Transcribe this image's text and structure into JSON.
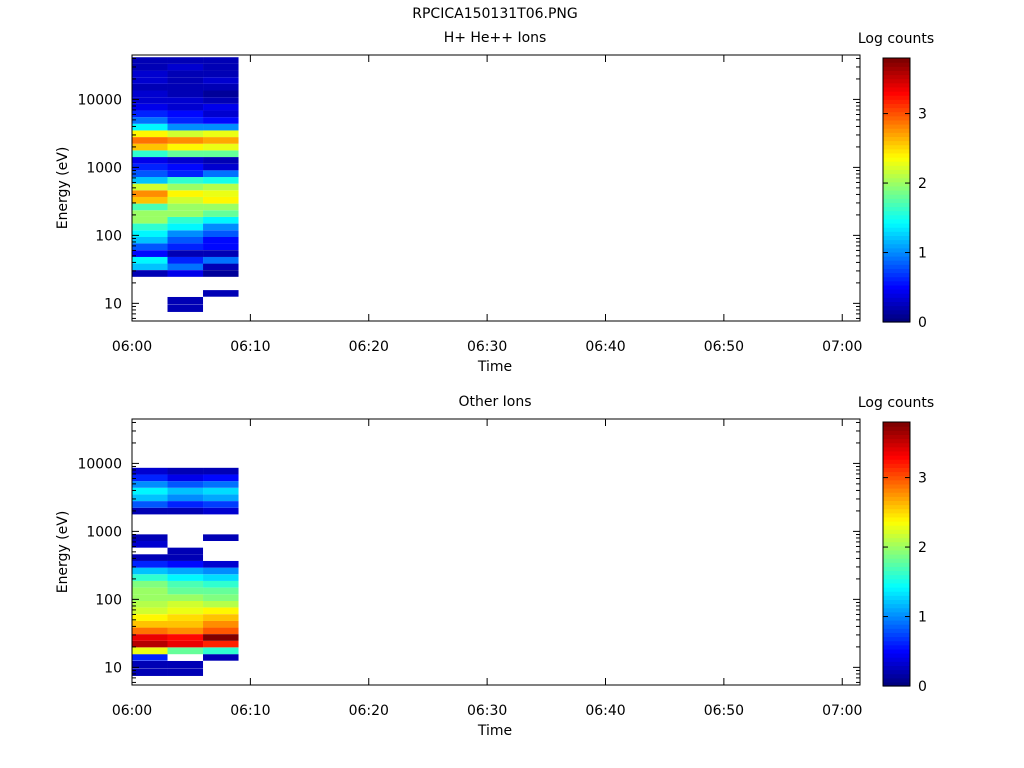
{
  "figure_title": "RPCICA150131T06.PNG",
  "chart_data": [
    {
      "type": "heatmap",
      "title": "H+ He++ Ions",
      "xlabel": "Time",
      "ylabel": "Energy (eV)",
      "y_scale": "log",
      "ylim": [
        5.5,
        45000
      ],
      "x_ticks": [
        "06:00",
        "06:10",
        "06:20",
        "06:30",
        "06:40",
        "06:50",
        "07:00"
      ],
      "y_ticks": [
        "10",
        "100",
        "1000",
        "10000"
      ],
      "colorbar": {
        "label": "Log counts",
        "ticks": [
          "0",
          "1",
          "2",
          "3"
        ],
        "range": [
          0,
          3.8
        ],
        "colormap": "jet"
      },
      "grid": false,
      "energy_bins_eV": [
        8.5,
        11,
        14,
        17.5,
        22,
        27.5,
        34.5,
        43,
        54,
        68,
        85,
        106,
        133,
        167,
        209,
        262,
        328,
        411,
        515,
        645,
        808,
        1012,
        1268,
        1588,
        1990,
        2493,
        3123,
        3913,
        4902,
        6141,
        7694,
        9640,
        12077,
        15131,
        18957,
        23750,
        29756,
        37280
      ],
      "time_columns": [
        "06:00",
        "06:03",
        "06:06",
        "06:09",
        "06:12",
        "06:15",
        "06:18",
        "06:21",
        "06:24",
        "06:27",
        "06:30",
        "06:33",
        "06:36",
        "06:39",
        "06:42",
        "06:45",
        "06:48",
        "06:51",
        "06:54",
        "06:57",
        "07:00"
      ],
      "rows": [
        [
          0,
          0,
          0,
          0,
          0,
          0.2,
          1.2,
          1.4,
          0.5,
          0.8,
          1.2,
          1.4,
          1.6,
          2.0,
          2.0,
          1.7,
          2.6,
          2.8,
          2.2,
          1.2,
          0.8,
          0.6,
          0.4,
          1.6,
          2.6,
          2.9,
          2.4,
          1.4,
          0.9,
          0.6,
          0.4,
          0.3,
          0.3,
          0.2,
          0.3,
          0.3,
          0.2,
          0.2
        ],
        [
          0.2,
          0.2,
          0,
          0,
          0,
          0.4,
          0.9,
          0.6,
          0.2,
          0.6,
          0.8,
          1.0,
          1.4,
          1.6,
          2.0,
          2.0,
          2.2,
          2.4,
          2.0,
          1.6,
          0.6,
          0.5,
          0.3,
          1.8,
          2.4,
          2.8,
          2.2,
          1.0,
          0.6,
          0.5,
          0.3,
          0.3,
          0.2,
          0.2,
          0.2,
          0.2,
          0.3,
          0.2
        ],
        [
          0,
          0,
          0.2,
          0,
          0,
          0.1,
          0.2,
          0.9,
          0.2,
          0.5,
          0.5,
          0.8,
          1.0,
          1.4,
          1.8,
          2.0,
          2.4,
          2.3,
          2.1,
          1.5,
          0.9,
          0.3,
          0.2,
          1.8,
          2.3,
          2.7,
          2.3,
          1.0,
          0.5,
          0.3,
          0.4,
          0.2,
          0.1,
          0.2,
          0.3,
          0.2,
          0.2,
          0.2
        ]
      ]
    },
    {
      "type": "heatmap",
      "title": "Other Ions",
      "xlabel": "Time",
      "ylabel": "Energy (eV)",
      "y_scale": "log",
      "ylim": [
        5.5,
        45000
      ],
      "x_ticks": [
        "06:00",
        "06:10",
        "06:20",
        "06:30",
        "06:40",
        "06:50",
        "07:00"
      ],
      "y_ticks": [
        "10",
        "100",
        "1000",
        "10000"
      ],
      "colorbar": {
        "label": "Log counts",
        "ticks": [
          "0",
          "1",
          "2",
          "3"
        ],
        "range": [
          0,
          3.8
        ],
        "colormap": "jet"
      },
      "grid": false,
      "energy_bins_eV": [
        8.5,
        11,
        14,
        17.5,
        22,
        27.5,
        34.5,
        43,
        54,
        68,
        85,
        106,
        133,
        167,
        209,
        262,
        328,
        411,
        515,
        645,
        808,
        1012,
        1268,
        1588,
        1990,
        2493,
        3123,
        3913,
        4902,
        6141,
        7694,
        9640,
        12077,
        15131,
        18957,
        23750,
        29756,
        37280
      ],
      "time_columns": [
        "06:00",
        "06:03",
        "06:06",
        "06:09",
        "06:12",
        "06:15",
        "06:18",
        "06:21",
        "06:24",
        "06:27",
        "06:30",
        "06:33",
        "06:36",
        "06:39",
        "06:42",
        "06:45",
        "06:48",
        "06:51",
        "06:54",
        "06:57",
        "07:00"
      ],
      "rows": [
        [
          0.2,
          0.2,
          0.6,
          2.3,
          3.6,
          3.4,
          2.9,
          2.6,
          2.4,
          2.2,
          2.1,
          2.0,
          2.0,
          1.9,
          1.6,
          1.2,
          0.6,
          0.2,
          0,
          0.3,
          0.2,
          0,
          0,
          0,
          0.2,
          0.8,
          1.2,
          1.4,
          1.0,
          0.6,
          0.3,
          0,
          0,
          0,
          0,
          0,
          0,
          0
        ],
        [
          0.2,
          0.2,
          0,
          1.8,
          3.4,
          3.3,
          2.8,
          2.6,
          2.5,
          2.3,
          2.2,
          2.0,
          1.8,
          1.7,
          1.4,
          1.1,
          0.5,
          0.2,
          0.2,
          0,
          0,
          0,
          0,
          0,
          0.2,
          0.6,
          1.0,
          1.2,
          0.8,
          0.4,
          0.2,
          0,
          0,
          0,
          0,
          0,
          0,
          0
        ],
        [
          0,
          0,
          0.2,
          1.6,
          3.2,
          3.8,
          3.0,
          2.8,
          2.6,
          2.4,
          2.1,
          1.9,
          1.8,
          1.6,
          1.3,
          1.0,
          0.3,
          0,
          0,
          0,
          0.2,
          0,
          0,
          0,
          0.3,
          0.7,
          1.1,
          1.3,
          0.9,
          0.5,
          0.2,
          0,
          0,
          0,
          0,
          0,
          0,
          0
        ]
      ]
    }
  ]
}
